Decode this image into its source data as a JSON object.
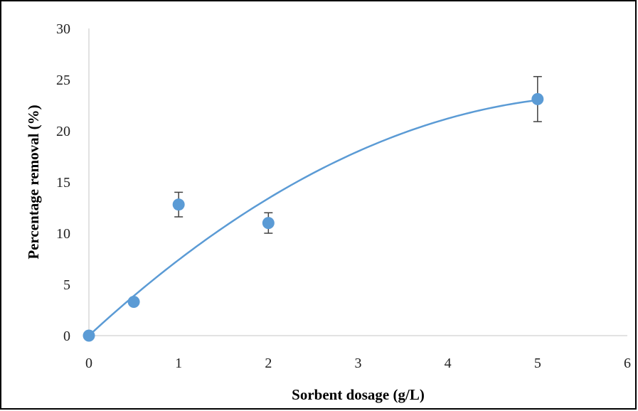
{
  "chart_data": {
    "type": "scatter",
    "title": "",
    "xlabel": "Sorbent dosage (g/L)",
    "ylabel": "Percentage removal (%)",
    "xlim": [
      0,
      6
    ],
    "ylim": [
      0,
      30
    ],
    "x_ticks": [
      0,
      1,
      2,
      3,
      4,
      5,
      6
    ],
    "y_ticks": [
      0,
      5,
      10,
      15,
      20,
      25,
      30
    ],
    "grid": false,
    "legend": "none",
    "series": [
      {
        "x": [
          0,
          0.5,
          1,
          2,
          5
        ],
        "y": [
          0,
          3.3,
          12.8,
          11.0,
          23.1
        ],
        "error": [
          null,
          null,
          1.2,
          1.0,
          2.2
        ],
        "color": "#5B9BD5",
        "marker": "circle"
      }
    ],
    "trendline": {
      "type": "polynomial",
      "color": "#5B9BD5",
      "coefficients": [
        0.0,
        8.1,
        -0.7
      ]
    }
  }
}
